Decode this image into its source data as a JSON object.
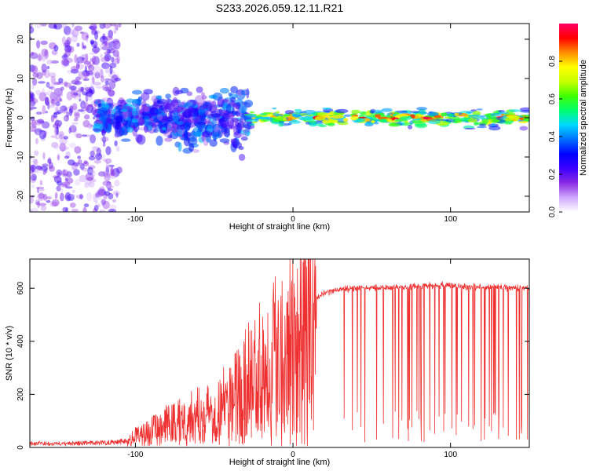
{
  "title": "S233.2026.059.12.11.R21",
  "chart_data": [
    {
      "type": "heatmap",
      "name": "spectrogram",
      "xlabel": "Height of straight line (km)",
      "ylabel": "Frequency (Hz)",
      "xlim": [
        -167,
        150
      ],
      "ylim": [
        -24,
        24
      ],
      "xticks": [
        -100,
        0,
        100
      ],
      "yticks": [
        -20,
        -10,
        0,
        10,
        20
      ],
      "colorbar": {
        "label": "Normalized spectral amplitude",
        "range": [
          0,
          1
        ],
        "ticks": [
          "0.0",
          "0.2",
          "0.4",
          "0.6",
          "0.8"
        ],
        "colors": [
          "#ffffff",
          "#cfa8ff",
          "#8a2be2",
          "#3c00ff",
          "#0000ff",
          "#0070ff",
          "#00d8ff",
          "#00ff70",
          "#40ff00",
          "#c8ff00",
          "#ffff00",
          "#ff8c00",
          "#ff0000",
          "#ff0066"
        ]
      },
      "regions": [
        {
          "x": [
            -167,
            -110
          ],
          "freq_spread": 24,
          "amplitude": [
            0.05,
            0.25
          ],
          "character": "scattered noise"
        },
        {
          "x": [
            -125,
            -27
          ],
          "freq_center": 0,
          "freq_spread": 11,
          "amplitude": [
            0.1,
            0.45
          ],
          "character": "broadened blobs"
        },
        {
          "x": [
            -27,
            150
          ],
          "freq_center": 0,
          "freq_spread": 3,
          "amplitude": [
            0.4,
            1.0
          ],
          "character": "narrow carrier line"
        }
      ]
    },
    {
      "type": "line",
      "name": "snr",
      "xlabel": "Height of straight line (km)",
      "ylabel": "SNR (10 * v/v)",
      "xlim": [
        -167,
        150
      ],
      "ylim": [
        0,
        710
      ],
      "xticks": [
        -100,
        0,
        100
      ],
      "yticks": [
        0,
        200,
        400,
        600
      ],
      "color": "#ee3030",
      "series": [
        {
          "name": "SNR",
          "x": [
            -167,
            -140,
            -120,
            -105,
            -100,
            -90,
            -80,
            -70,
            -60,
            -50,
            -40,
            -32,
            -25,
            -15,
            -8,
            0,
            5,
            7,
            10,
            15,
            20,
            25,
            30,
            40,
            50,
            60,
            70,
            80,
            90,
            100,
            110,
            120,
            130,
            140,
            150
          ],
          "y": [
            15,
            15,
            18,
            25,
            40,
            60,
            85,
            105,
            120,
            140,
            175,
            225,
            270,
            330,
            385,
            410,
            450,
            500,
            540,
            560,
            580,
            590,
            595,
            600,
            602,
            605,
            605,
            607,
            610,
            610,
            605,
            603,
            605,
            602,
            600
          ]
        }
      ]
    }
  ]
}
